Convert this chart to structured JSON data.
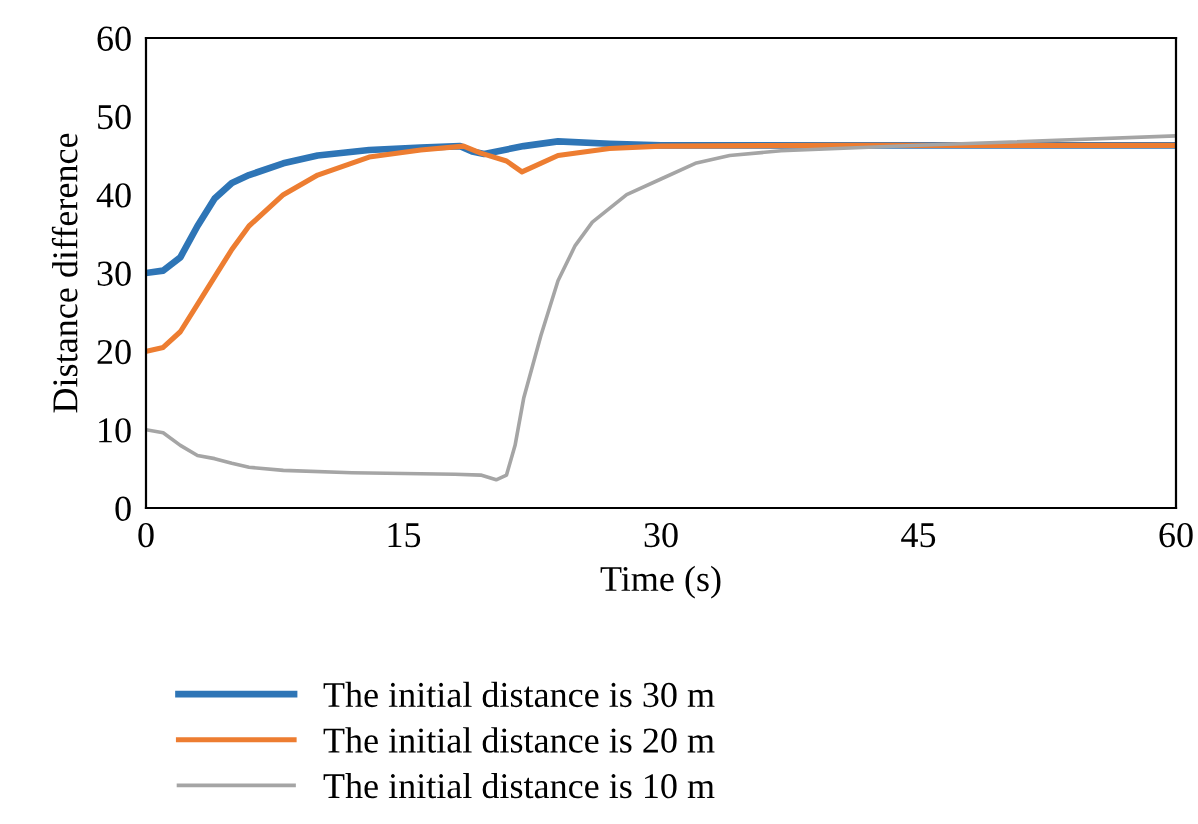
{
  "chart_data": {
    "type": "line",
    "xlabel": "Time (s)",
    "ylabel": "Distance difference",
    "xlim": [
      0,
      60
    ],
    "ylim": [
      0,
      60
    ],
    "xticks": [
      0,
      15,
      30,
      45,
      60
    ],
    "yticks": [
      0,
      10,
      20,
      30,
      40,
      50,
      60
    ],
    "grid": false,
    "legend": "bottom",
    "marker": "none",
    "line_style": "solid",
    "series": [
      {
        "name": "The initial distance is 30 m",
        "color": "#2e75b6",
        "x": [
          0,
          1,
          2,
          3,
          4,
          5,
          6,
          8,
          10,
          13,
          16,
          18.3,
          19,
          19.7,
          22,
          24,
          27,
          30,
          40,
          60
        ],
        "values": [
          30,
          30.3,
          32,
          36,
          39.5,
          41.5,
          42.5,
          44,
          45,
          45.7,
          46,
          46.2,
          45.5,
          45.2,
          46.2,
          46.8,
          46.5,
          46.3,
          46.3,
          46.3
        ]
      },
      {
        "name": "The initial distance is 20 m",
        "color": "#ed7d31",
        "x": [
          0,
          1,
          2,
          3,
          4,
          5,
          6,
          8,
          10,
          13,
          16,
          18.5,
          19.5,
          21,
          21.9,
          24,
          27,
          30,
          40,
          60
        ],
        "values": [
          20,
          20.5,
          22.5,
          26,
          29.5,
          33,
          36,
          40,
          42.5,
          44.8,
          45.7,
          46.2,
          45.3,
          44.3,
          42.9,
          45,
          45.9,
          46.2,
          46.3,
          46.3
        ]
      },
      {
        "name": "The initial distance is 10 m",
        "color": "#a5a5a5",
        "x": [
          0,
          1,
          2,
          3,
          4,
          5,
          6,
          8,
          12,
          18,
          19.5,
          20.4,
          21,
          21.5,
          22,
          23,
          24,
          25,
          26,
          28,
          30,
          32,
          34,
          37,
          45,
          60
        ],
        "values": [
          10,
          9.6,
          8,
          6.7,
          6.3,
          5.7,
          5.2,
          4.8,
          4.5,
          4.3,
          4.2,
          3.6,
          4.2,
          8,
          14,
          22,
          29,
          33.5,
          36.5,
          40,
          42,
          44,
          45,
          45.6,
          46.3,
          47.5
        ]
      }
    ]
  }
}
